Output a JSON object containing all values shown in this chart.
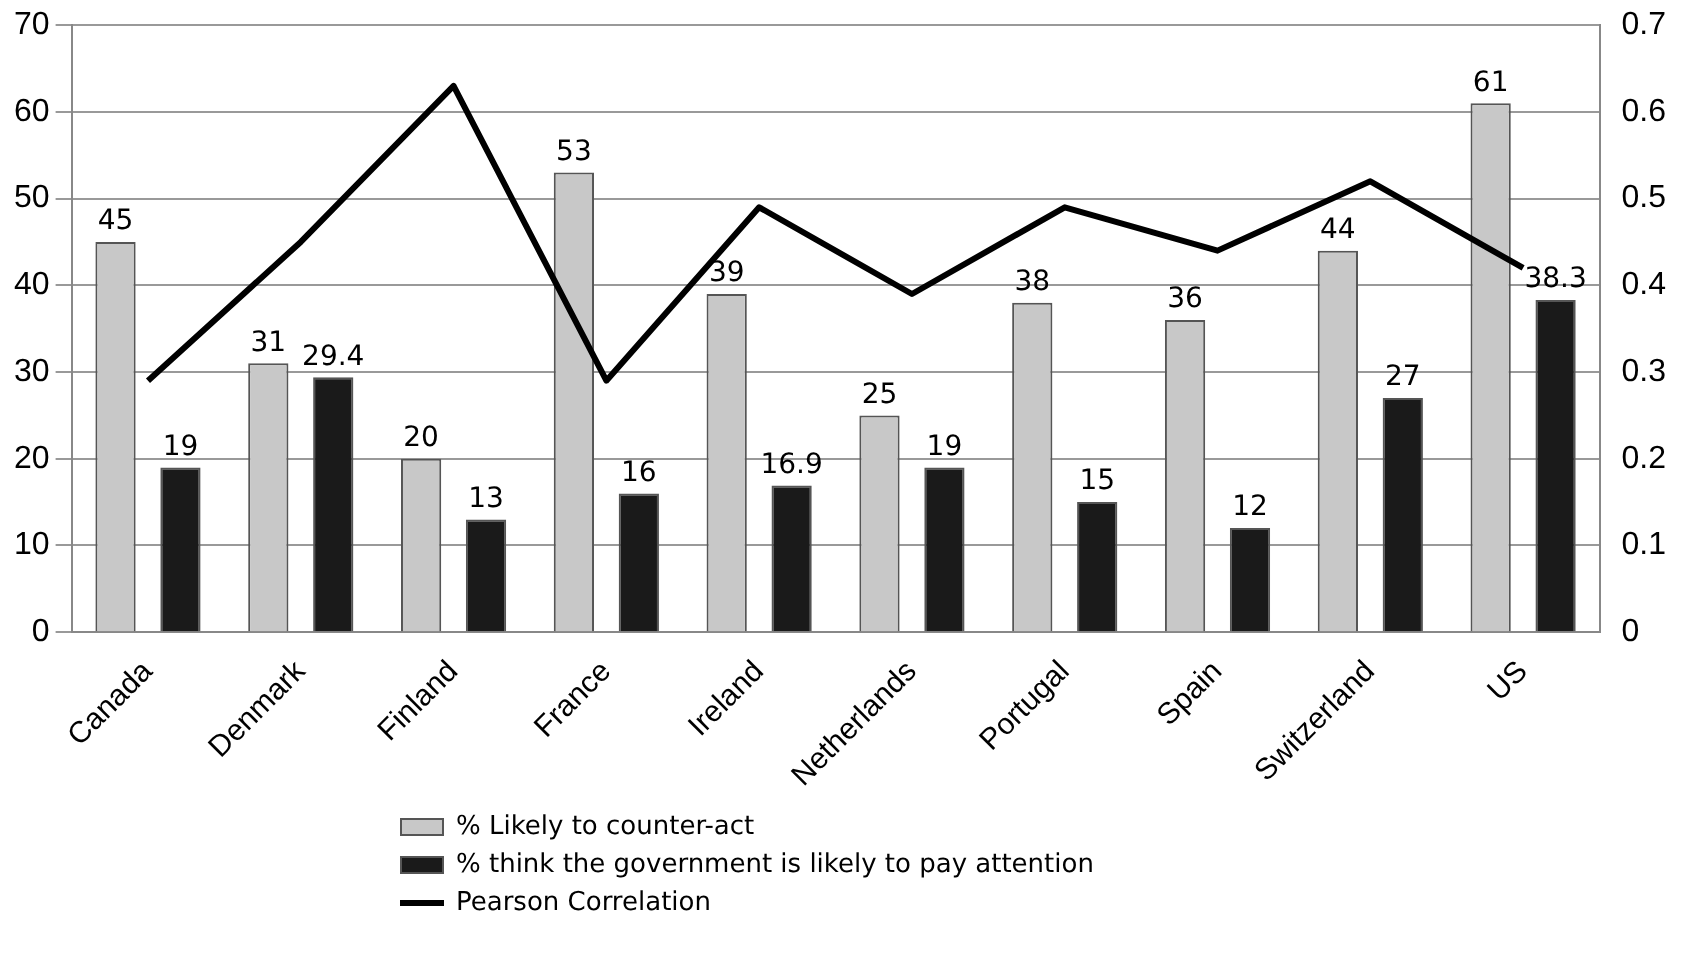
{
  "chart_data": {
    "type": "bar",
    "categories": [
      "Canada",
      "Denmark",
      "Finland",
      "France",
      "Ireland",
      "Netherlands",
      "Portugal",
      "Spain",
      "Switzerland",
      "US"
    ],
    "series": [
      {
        "name": "% Likely to counter-act",
        "color": "#c8c8c8",
        "values": [
          45,
          31,
          20,
          53,
          39,
          25,
          38,
          36,
          44,
          61
        ],
        "value_labels": [
          "45",
          "31",
          "20",
          "53",
          "39",
          "25",
          "38",
          "36",
          "44",
          "61"
        ]
      },
      {
        "name": "% think the government is likely to pay attention",
        "color": "#1a1a1a",
        "values": [
          19,
          29.4,
          13,
          16,
          16.9,
          19,
          15,
          12,
          27,
          38.3
        ],
        "value_labels": [
          "19",
          "29.4",
          "13",
          "16",
          "16.9",
          "19",
          "15",
          "12",
          "27",
          "38.3"
        ]
      },
      {
        "name": "Pearson Correlation",
        "type": "line",
        "axis": "y2",
        "color": "#000000",
        "values": [
          0.29,
          0.45,
          0.63,
          0.29,
          0.49,
          0.39,
          0.49,
          0.44,
          0.52,
          0.42
        ]
      }
    ],
    "ylim": [
      0,
      70
    ],
    "yticks": [
      0,
      10,
      20,
      30,
      40,
      50,
      60,
      70
    ],
    "y2lim": [
      0,
      0.7
    ],
    "y2ticks": [
      0,
      0.1,
      0.2,
      0.3,
      0.4,
      0.5,
      0.6,
      0.7
    ],
    "grid": "y",
    "legend": "bottom",
    "marker": "none",
    "line_style": "solid"
  }
}
